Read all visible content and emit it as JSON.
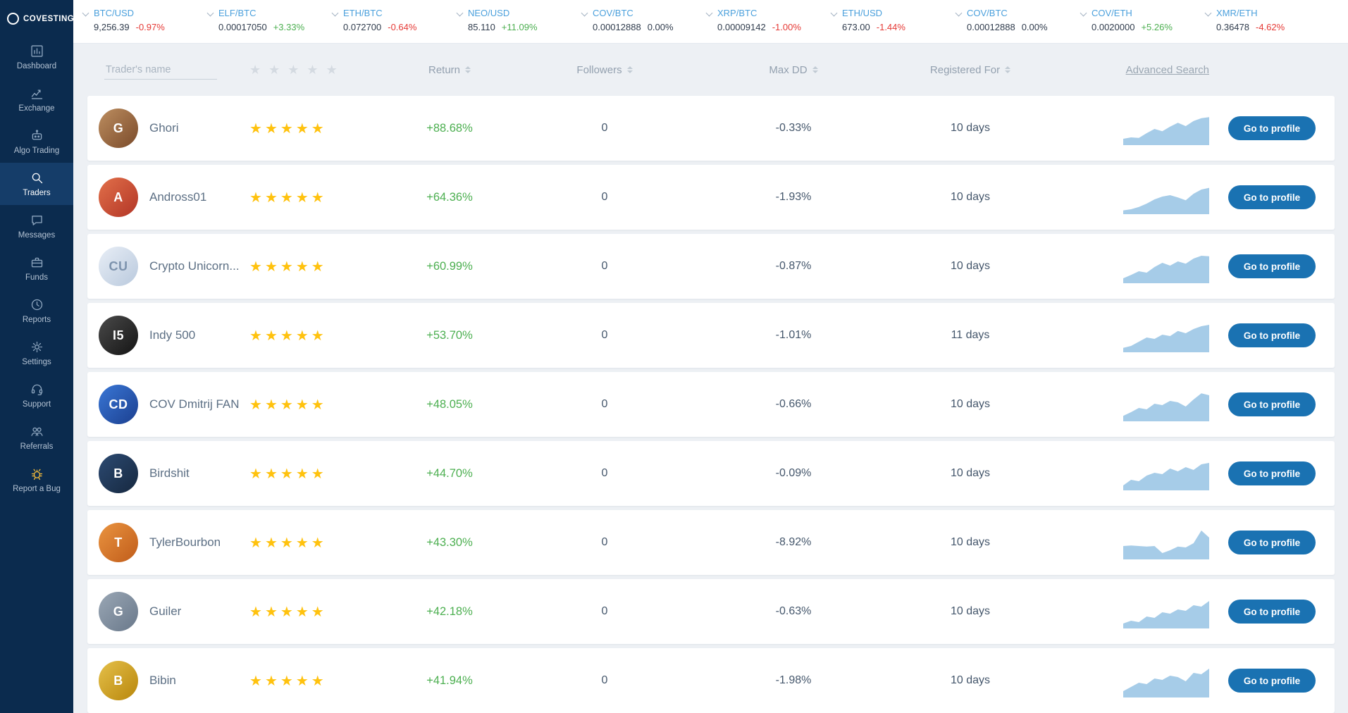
{
  "brand": {
    "name": "COVESTING"
  },
  "sidebar": {
    "items": [
      {
        "label": "Dashboard",
        "icon": "dashboard-icon"
      },
      {
        "label": "Exchange",
        "icon": "exchange-icon"
      },
      {
        "label": "Algo Trading",
        "icon": "algo-trading-icon"
      },
      {
        "label": "Traders",
        "icon": "search-icon",
        "active": true
      },
      {
        "label": "Messages",
        "icon": "messages-icon"
      },
      {
        "label": "Funds",
        "icon": "briefcase-icon"
      },
      {
        "label": "Reports",
        "icon": "clock-icon"
      },
      {
        "label": "Settings",
        "icon": "gear-icon"
      },
      {
        "label": "Support",
        "icon": "support-icon"
      },
      {
        "label": "Referrals",
        "icon": "people-icon"
      },
      {
        "label": "Report a Bug",
        "icon": "bug-icon",
        "accent": true
      }
    ]
  },
  "tickers": [
    {
      "pair": "BTC/USD",
      "price": "9,256.39",
      "change": "-0.97%"
    },
    {
      "pair": "ELF/BTC",
      "price": "0.00017050",
      "change": "+3.33%"
    },
    {
      "pair": "ETH/BTC",
      "price": "0.072700",
      "change": "-0.64%"
    },
    {
      "pair": "NEO/USD",
      "price": "85.110",
      "change": "+11.09%"
    },
    {
      "pair": "COV/BTC",
      "price": "0.00012888",
      "change": "0.00%"
    },
    {
      "pair": "XRP/BTC",
      "price": "0.00009142",
      "change": "-1.00%"
    },
    {
      "pair": "ETH/USD",
      "price": "673.00",
      "change": "-1.44%"
    },
    {
      "pair": "COV/BTC",
      "price": "0.00012888",
      "change": "0.00%"
    },
    {
      "pair": "COV/ETH",
      "price": "0.0020000",
      "change": "+5.26%"
    },
    {
      "pair": "XMR/ETH",
      "price": "0.36478",
      "change": "-4.62%"
    }
  ],
  "table": {
    "name_filter_placeholder": "Trader's name",
    "columns": {
      "return": "Return",
      "followers": "Followers",
      "max_dd": "Max DD",
      "registered_for": "Registered For"
    },
    "advanced_search_label": "Advanced Search",
    "action_label": "Go to profile",
    "rows": [
      {
        "name": "Ghori",
        "rating": 5,
        "return": "+88.68%",
        "followers": "0",
        "max_dd": "-0.33%",
        "registered_for": "10 days",
        "avatar": {
          "initials": "G",
          "bg1": "#bd8e60",
          "bg2": "#7a4a2a"
        },
        "spark": [
          0.15,
          0.2,
          0.18,
          0.35,
          0.5,
          0.42,
          0.58,
          0.72,
          0.6,
          0.78,
          0.88,
          0.92
        ]
      },
      {
        "name": "Andross01",
        "rating": 5,
        "return": "+64.36%",
        "followers": "0",
        "max_dd": "-1.93%",
        "registered_for": "10 days",
        "avatar": {
          "initials": "A",
          "bg1": "#e2704a",
          "bg2": "#b23526"
        },
        "spark": [
          0.06,
          0.1,
          0.18,
          0.3,
          0.45,
          0.55,
          0.6,
          0.52,
          0.42,
          0.65,
          0.8,
          0.86
        ]
      },
      {
        "name": "Crypto Unicorn...",
        "rating": 5,
        "return": "+60.99%",
        "followers": "0",
        "max_dd": "-0.87%",
        "registered_for": "10 days",
        "avatar": {
          "initials": "CU",
          "bg1": "#e8eef6",
          "bg2": "#b9c9dd",
          "fg": "#7d93ad"
        },
        "spark": [
          0.1,
          0.22,
          0.35,
          0.3,
          0.5,
          0.65,
          0.55,
          0.7,
          0.62,
          0.8,
          0.9,
          0.88
        ]
      },
      {
        "name": "Indy 500",
        "rating": 5,
        "return": "+53.70%",
        "followers": "0",
        "max_dd": "-1.01%",
        "registered_for": "11 days",
        "avatar": {
          "initials": "I5",
          "bg1": "#4a4a4a",
          "bg2": "#141414"
        },
        "spark": [
          0.08,
          0.15,
          0.3,
          0.45,
          0.4,
          0.55,
          0.5,
          0.68,
          0.6,
          0.75,
          0.85,
          0.9
        ]
      },
      {
        "name": "COV Dmitrij FAN",
        "rating": 5,
        "return": "+48.05%",
        "followers": "0",
        "max_dd": "-0.66%",
        "registered_for": "10 days",
        "avatar": {
          "initials": "CD",
          "bg1": "#3a77d6",
          "bg2": "#1b3f8f"
        },
        "spark": [
          0.12,
          0.25,
          0.4,
          0.35,
          0.55,
          0.5,
          0.65,
          0.6,
          0.45,
          0.7,
          0.92,
          0.85
        ]
      },
      {
        "name": "Birdshit",
        "rating": 5,
        "return": "+44.70%",
        "followers": "0",
        "max_dd": "-0.09%",
        "registered_for": "10 days",
        "avatar": {
          "initials": "B",
          "bg1": "#2c4a72",
          "bg2": "#16283f"
        },
        "spark": [
          0.1,
          0.3,
          0.25,
          0.45,
          0.55,
          0.5,
          0.7,
          0.6,
          0.75,
          0.65,
          0.85,
          0.9
        ]
      },
      {
        "name": "TylerBourbon",
        "rating": 5,
        "return": "+43.30%",
        "followers": "0",
        "max_dd": "-8.92%",
        "registered_for": "10 days",
        "avatar": {
          "initials": "T",
          "bg1": "#ea9440",
          "bg2": "#c05c1a"
        },
        "spark": [
          0.4,
          0.42,
          0.4,
          0.38,
          0.4,
          0.15,
          0.25,
          0.38,
          0.35,
          0.5,
          0.95,
          0.7
        ]
      },
      {
        "name": "Guiler",
        "rating": 5,
        "return": "+42.18%",
        "followers": "0",
        "max_dd": "-0.63%",
        "registered_for": "10 days",
        "avatar": {
          "initials": "G",
          "bg1": "#9aa7b5",
          "bg2": "#69788a"
        },
        "spark": [
          0.1,
          0.2,
          0.15,
          0.35,
          0.3,
          0.5,
          0.45,
          0.6,
          0.55,
          0.75,
          0.7,
          0.9
        ]
      },
      {
        "name": "Bibin",
        "rating": 5,
        "return": "+41.94%",
        "followers": "0",
        "max_dd": "-1.98%",
        "registered_for": "10 days",
        "avatar": {
          "initials": "B",
          "bg1": "#e5c04a",
          "bg2": "#b8860b"
        },
        "spark": [
          0.15,
          0.3,
          0.45,
          0.4,
          0.6,
          0.55,
          0.7,
          0.65,
          0.5,
          0.8,
          0.75,
          0.95
        ]
      }
    ]
  },
  "colors": {
    "sidebar_bg": "#0b2b4e",
    "accent_blue": "#1a72b2",
    "pair_blue": "#4ba0dc",
    "positive_green": "#4caf50",
    "negative_red": "#e53935",
    "star_yellow": "#ffc20e",
    "spark_fill": "#a6cce8"
  }
}
